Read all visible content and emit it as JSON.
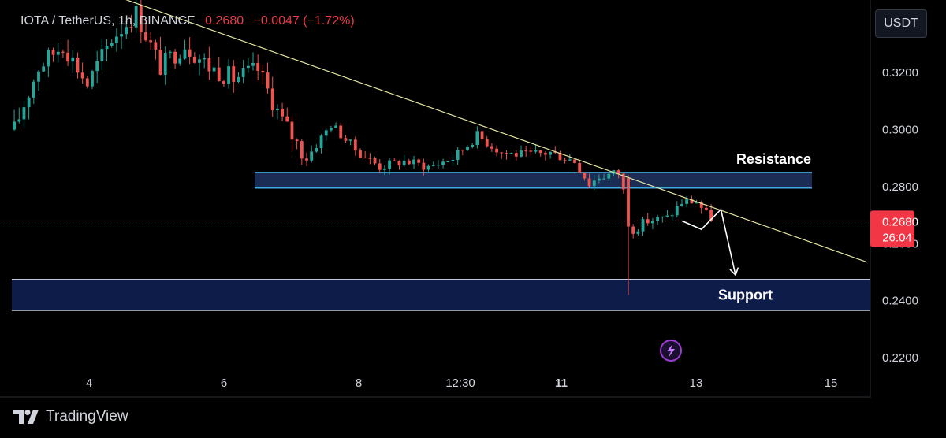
{
  "header": {
    "symbol": "IOTA / TetherUS, 1h, BINANCE",
    "price": "0.2680",
    "change": "−0.0047 (−1.72%)"
  },
  "currency_button": "USDT",
  "price_label": {
    "price": "0.2680",
    "countdown": "26:04"
  },
  "brand": {
    "name": "TradingView"
  },
  "colors": {
    "up": "#26a69a",
    "down": "#ef5350",
    "trendline": "#e6e6a0",
    "resistance_zone": "#1b2c55",
    "support_zone": "#0e1c4a",
    "price_tag": "#f23645"
  },
  "chart_data": {
    "type": "candlestick",
    "y_ticks": [
      "0.3200",
      "0.3000",
      "0.2800",
      "0.2600",
      "0.2400",
      "0.2200"
    ],
    "x_ticks": [
      "4",
      "6",
      "8",
      "12:30",
      "11",
      "13",
      "15"
    ],
    "ylim": [
      0.2175,
      0.3455
    ],
    "current_price": 0.268,
    "resistance_zone": {
      "label": "Resistance",
      "low": 0.2795,
      "high": 0.285
    },
    "support_zone": {
      "label": "Support",
      "low": 0.2365,
      "high": 0.2475
    },
    "trendline": {
      "from": {
        "x_index": 0,
        "price": 0.3595
      },
      "to": {
        "x_index": 175,
        "price": 0.2535
      }
    },
    "projection": [
      {
        "x_index": 137,
        "price": 0.268
      },
      {
        "x_index": 141,
        "price": 0.265
      },
      {
        "x_index": 145,
        "price": 0.272
      },
      {
        "x_index": 148,
        "price": 0.249
      }
    ],
    "waypoints": [
      [
        0,
        0.3
      ],
      [
        5,
        0.322
      ],
      [
        10,
        0.33
      ],
      [
        15,
        0.316
      ],
      [
        20,
        0.332
      ],
      [
        25,
        0.341
      ],
      [
        30,
        0.322
      ],
      [
        35,
        0.33
      ],
      [
        40,
        0.322
      ],
      [
        45,
        0.318
      ],
      [
        50,
        0.321
      ],
      [
        55,
        0.303
      ],
      [
        60,
        0.29
      ],
      [
        65,
        0.302
      ],
      [
        70,
        0.293
      ],
      [
        75,
        0.287
      ],
      [
        80,
        0.289
      ],
      [
        85,
        0.287
      ],
      [
        90,
        0.29
      ],
      [
        95,
        0.298
      ],
      [
        100,
        0.292
      ],
      [
        105,
        0.291
      ],
      [
        110,
        0.292
      ],
      [
        115,
        0.289
      ],
      [
        118,
        0.281
      ],
      [
        120,
        0.2835
      ],
      [
        124,
        0.285
      ],
      [
        126,
        0.272
      ],
      [
        127,
        0.265
      ],
      [
        130,
        0.268
      ],
      [
        134,
        0.269
      ],
      [
        137,
        0.2745
      ],
      [
        140,
        0.275
      ],
      [
        143,
        0.268
      ]
    ],
    "special_candles": [
      {
        "x_index": 126,
        "open": 0.283,
        "close": 0.266,
        "high": 0.284,
        "low": 0.242
      }
    ]
  }
}
